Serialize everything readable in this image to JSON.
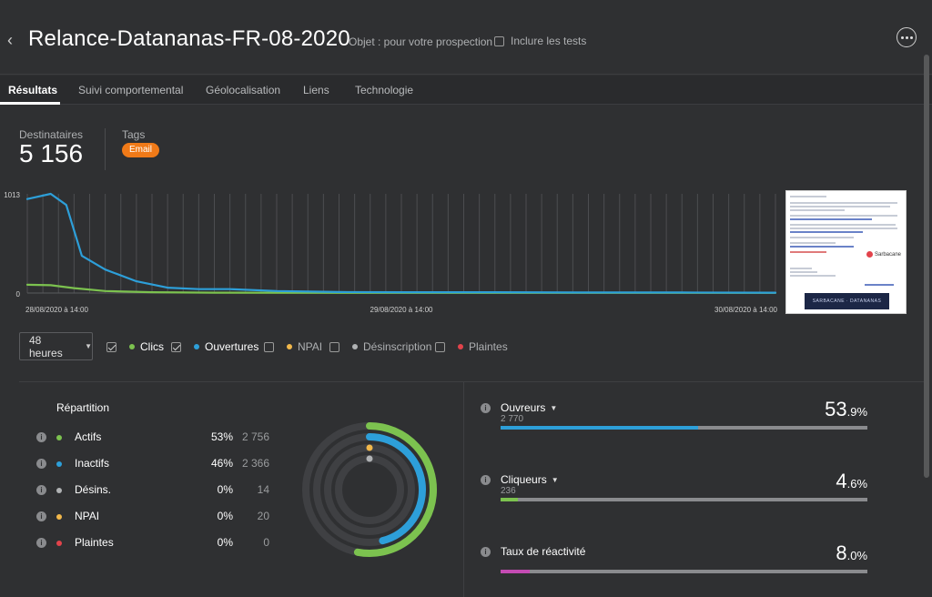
{
  "header": {
    "back_glyph": "‹",
    "title": "Relance-Datananas-FR-08-2020",
    "subject": "Objet : pour votre prospection",
    "include_tests_label": "Inclure les tests",
    "include_tests_checked": false,
    "more_icon": "more-icon"
  },
  "tabs": [
    {
      "label": "Résultats",
      "active": true
    },
    {
      "label": "Suivi comportemental",
      "active": false
    },
    {
      "label": "Géolocalisation",
      "active": false
    },
    {
      "label": "Liens",
      "active": false
    },
    {
      "label": "Technologie",
      "active": false
    }
  ],
  "summary": {
    "recipients_label": "Destinataires",
    "recipients_value": "5 156",
    "tags_label": "Tags",
    "tag": "Email",
    "tag_color": "#f07a18"
  },
  "chart_data": {
    "type": "line",
    "y_ticks": [
      "1013",
      "0"
    ],
    "ylim": [
      0,
      1013
    ],
    "x_tick_labels": [
      "28/08/2020 à 14:00",
      "29/08/2020 à 14:00",
      "30/08/2020 à 14:00"
    ],
    "x_range_hours": [
      0,
      48
    ],
    "series": [
      {
        "name": "Ouvertures",
        "color": "#2d9fd9",
        "values": [
          [
            0,
            960
          ],
          [
            1.5,
            1013
          ],
          [
            2.5,
            900
          ],
          [
            3.5,
            380
          ],
          [
            5,
            240
          ],
          [
            7,
            120
          ],
          [
            9,
            55
          ],
          [
            11,
            40
          ],
          [
            13,
            40
          ],
          [
            16,
            20
          ],
          [
            20,
            10
          ],
          [
            24,
            8
          ],
          [
            30,
            8
          ],
          [
            36,
            6
          ],
          [
            42,
            6
          ],
          [
            48,
            4
          ]
        ]
      },
      {
        "name": "Clics",
        "color": "#7cc24f",
        "values": [
          [
            0,
            85
          ],
          [
            1.5,
            80
          ],
          [
            3,
            50
          ],
          [
            5,
            20
          ],
          [
            8,
            8
          ],
          [
            12,
            4
          ],
          [
            20,
            2
          ],
          [
            48,
            2
          ]
        ]
      }
    ]
  },
  "controls": {
    "period_label": "48 heures",
    "legend": [
      {
        "label": "Clics",
        "checked": true,
        "color": "#7cc24f",
        "strong": true
      },
      {
        "label": "Ouvertures",
        "checked": true,
        "color": "#2d9fd9",
        "strong": true
      },
      {
        "label": "NPAI",
        "checked": false,
        "color": "#f2b84b",
        "strong": false
      },
      {
        "label": "Désinscription",
        "checked": false,
        "color": "#b0b2b4",
        "strong": false
      },
      {
        "label": "Plaintes",
        "checked": false,
        "color": "#e2434b",
        "strong": false
      }
    ]
  },
  "repartition": {
    "title": "Répartition",
    "rows": [
      {
        "name": "Actifs",
        "pct": "53%",
        "count": "2 756",
        "color": "#7cc24f",
        "fraction": 0.53
      },
      {
        "name": "Inactifs",
        "pct": "46%",
        "count": "2 366",
        "color": "#2d9fd9",
        "fraction": 0.46
      },
      {
        "name": "Désins.",
        "pct": "0%",
        "count": "14",
        "color": "#b0b2b4",
        "fraction": 0.003
      },
      {
        "name": "NPAI",
        "pct": "0%",
        "count": "20",
        "color": "#f2b84b",
        "fraction": 0.004
      },
      {
        "name": "Plaintes",
        "pct": "0%",
        "count": "0",
        "color": "#e2434b",
        "fraction": 0
      }
    ]
  },
  "metrics": [
    {
      "name": "Ouvreurs",
      "has_dropdown": true,
      "sub": "2 770",
      "int": "53",
      "dec": ".9",
      "suffix": "%",
      "fraction": 0.539,
      "color": "#2d9fd9"
    },
    {
      "name": "Cliqueurs",
      "has_dropdown": true,
      "sub": "236",
      "int": "4",
      "dec": ".6",
      "suffix": "%",
      "fraction": 0.046,
      "color": "#7cc24f"
    },
    {
      "name": "Taux de réactivité",
      "has_dropdown": false,
      "sub": "",
      "int": "8",
      "dec": ".0",
      "suffix": "%",
      "fraction": 0.08,
      "color": "#c44bb3"
    }
  ],
  "email_preview": {
    "brand": "Sarbacane",
    "banner": "SARBACANE · DATANANAS"
  }
}
